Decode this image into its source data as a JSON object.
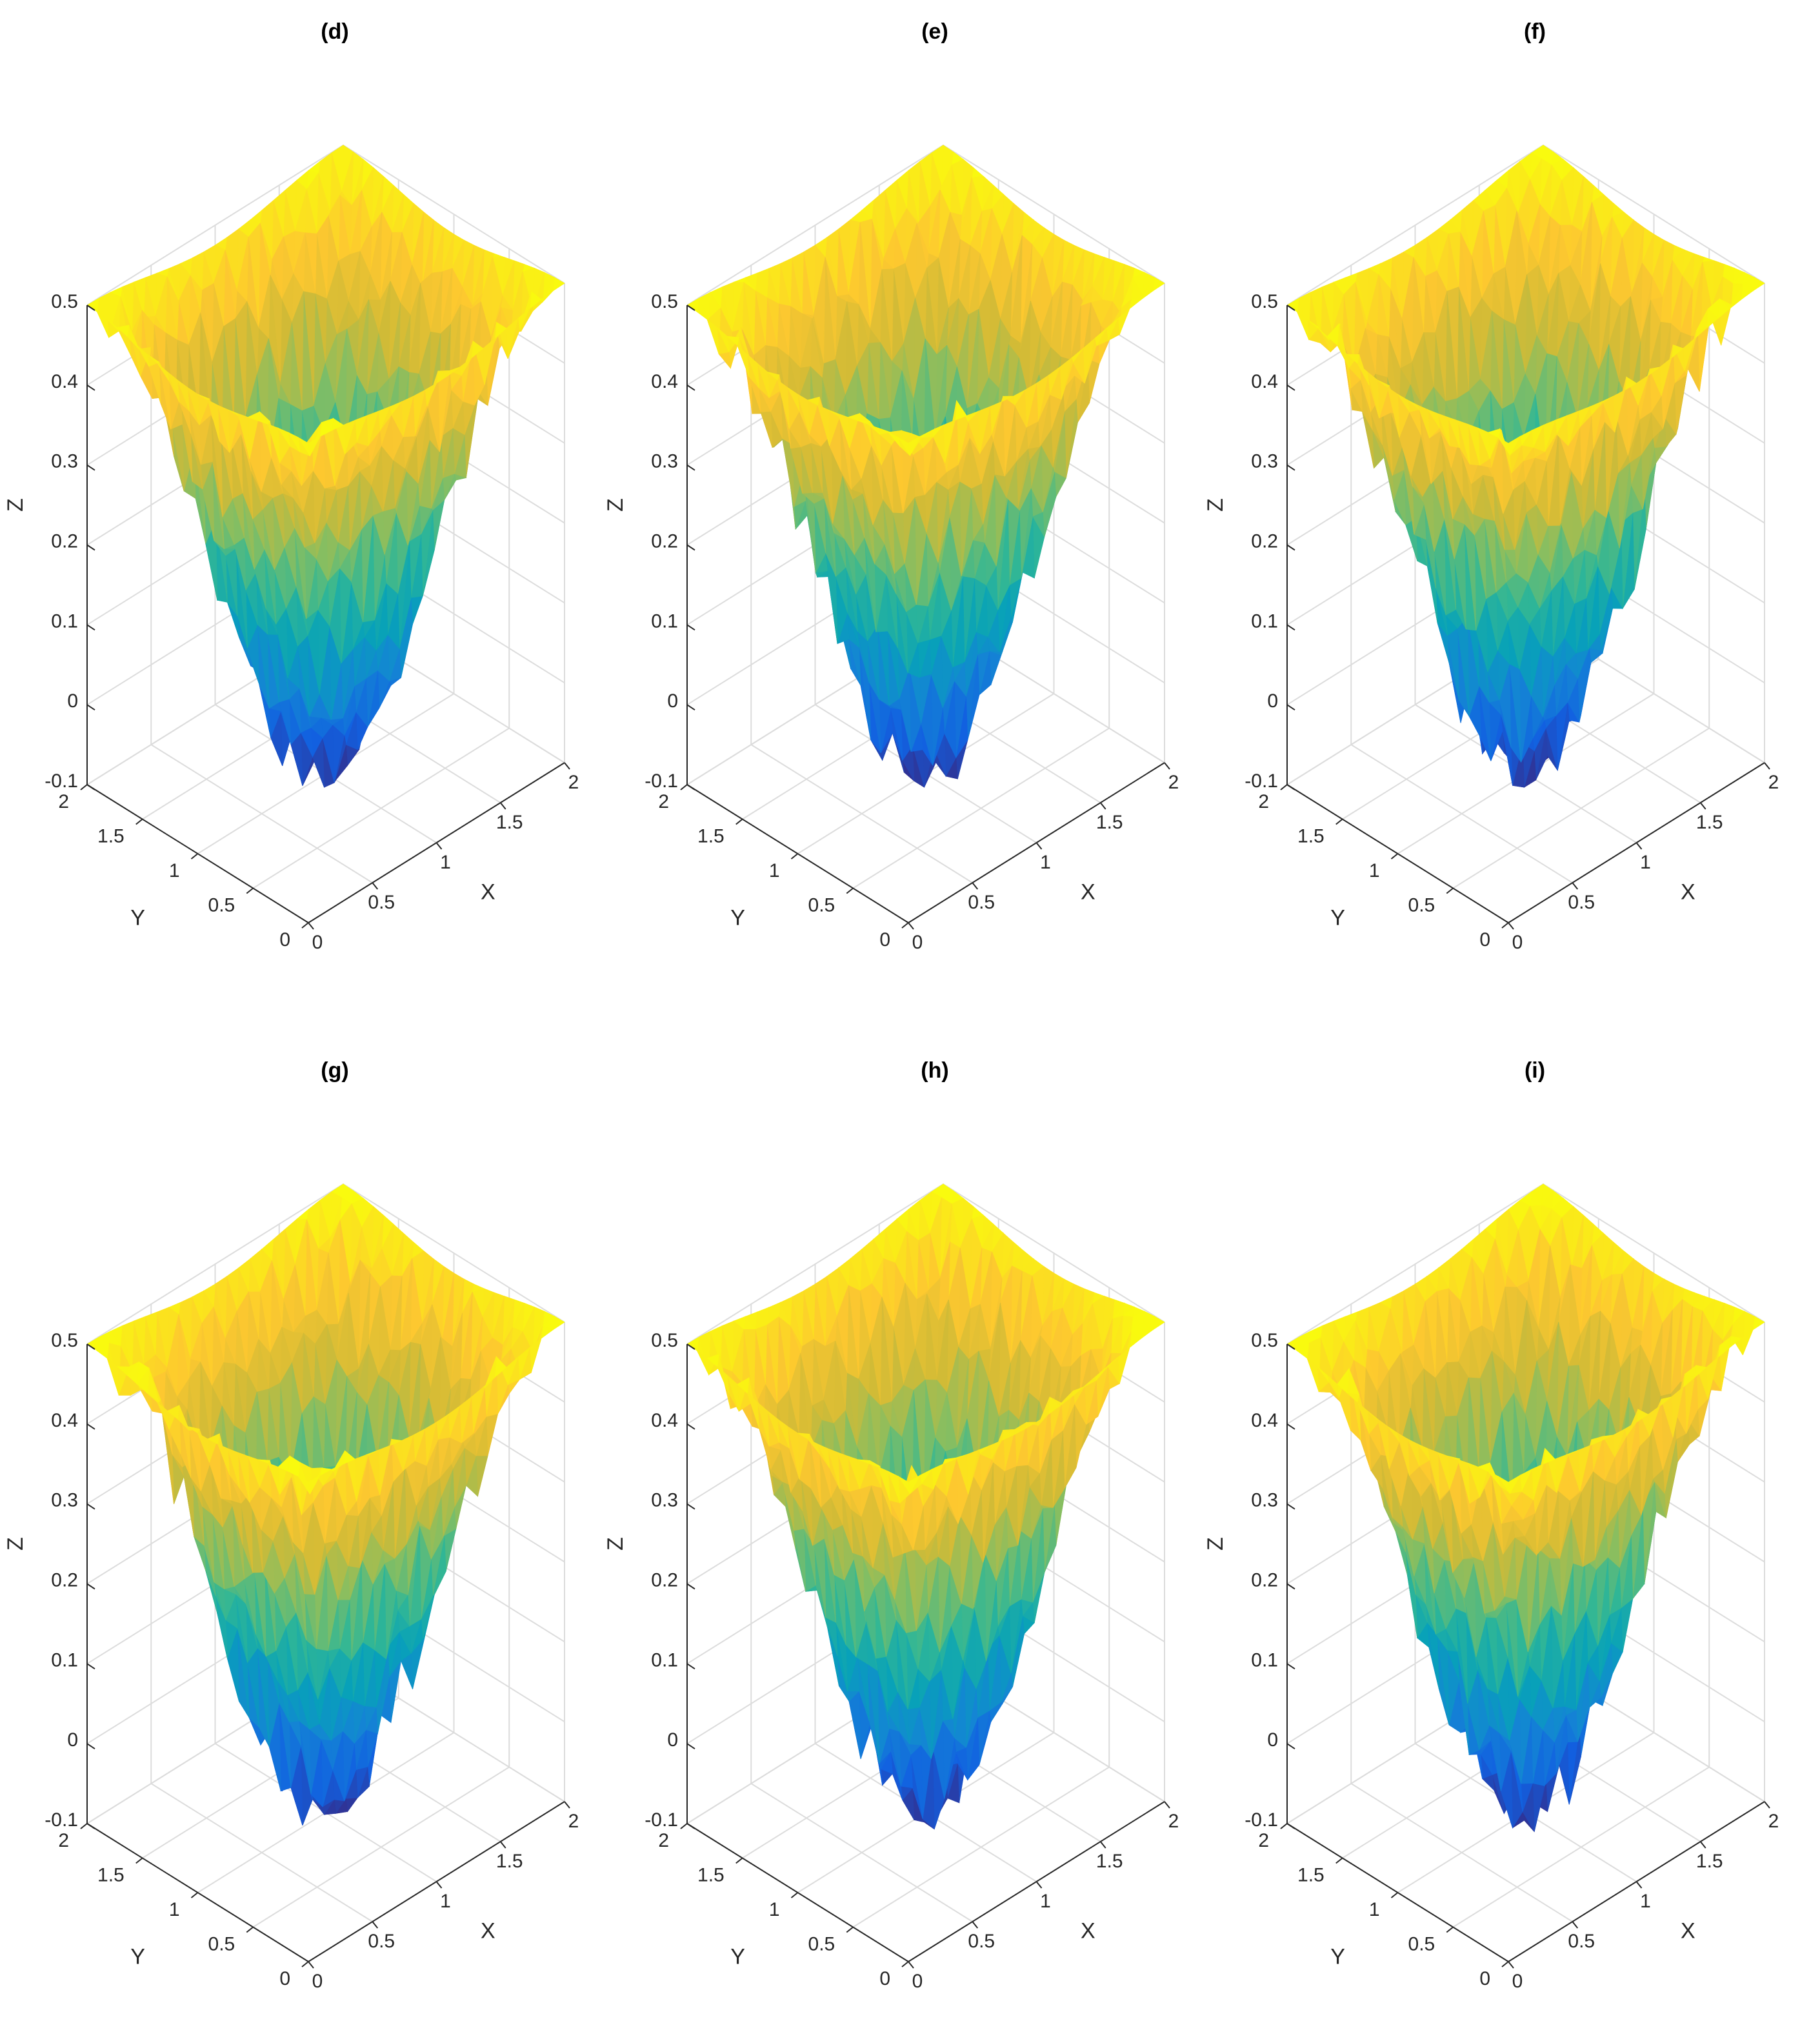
{
  "chart_data": [
    {
      "type": "surface",
      "title": "(d)",
      "xlabel": "X",
      "ylabel": "Y",
      "zlabel": "Z",
      "xlim": [
        0,
        2
      ],
      "ylim": [
        0,
        2
      ],
      "zlim": [
        -0.1,
        0.5
      ],
      "xticks": [
        "0",
        "0.5",
        "1",
        "1.5",
        "2"
      ],
      "yticks": [
        "0",
        "0.5",
        "1",
        "1.5",
        "2"
      ],
      "zticks": [
        "-0.1",
        "0",
        "0.1",
        "0.2",
        "0.3",
        "0.4",
        "0.5"
      ],
      "grid": true,
      "colormap": "parula",
      "z_min": -0.1,
      "z_max": 0.5,
      "z_corner": 0.5,
      "noise": 0.08,
      "seed": 11
    },
    {
      "type": "surface",
      "title": "(e)",
      "xlabel": "X",
      "ylabel": "Y",
      "zlabel": "Z",
      "xlim": [
        0,
        2
      ],
      "ylim": [
        0,
        2
      ],
      "zlim": [
        -0.1,
        0.5
      ],
      "xticks": [
        "0",
        "0.5",
        "1",
        "1.5",
        "2"
      ],
      "yticks": [
        "0",
        "0.5",
        "1",
        "1.5",
        "2"
      ],
      "zticks": [
        "-0.1",
        "0",
        "0.1",
        "0.2",
        "0.3",
        "0.4",
        "0.5"
      ],
      "grid": true,
      "colormap": "parula",
      "z_min": -0.1,
      "z_max": 0.5,
      "z_corner": 0.5,
      "noise": 0.08,
      "seed": 23
    },
    {
      "type": "surface",
      "title": "(f)",
      "xlabel": "X",
      "ylabel": "Y",
      "zlabel": "Z",
      "xlim": [
        0,
        2
      ],
      "ylim": [
        0,
        2
      ],
      "zlim": [
        -0.1,
        0.5
      ],
      "xticks": [
        "0",
        "0.5",
        "1",
        "1.5",
        "2"
      ],
      "yticks": [
        "0",
        "0.5",
        "1",
        "1.5",
        "2"
      ],
      "zticks": [
        "-0.1",
        "0",
        "0.1",
        "0.2",
        "0.3",
        "0.4",
        "0.5"
      ],
      "grid": true,
      "colormap": "parula",
      "z_min": -0.1,
      "z_max": 0.5,
      "z_corner": 0.5,
      "noise": 0.08,
      "seed": 37
    },
    {
      "type": "surface",
      "title": "(g)",
      "xlabel": "X",
      "ylabel": "Y",
      "zlabel": "Z",
      "xlim": [
        0,
        2
      ],
      "ylim": [
        0,
        2
      ],
      "zlim": [
        -0.1,
        0.5
      ],
      "xticks": [
        "0",
        "0.5",
        "1",
        "1.5",
        "2"
      ],
      "yticks": [
        "0",
        "0.5",
        "1",
        "1.5",
        "2"
      ],
      "zticks": [
        "-0.1",
        "0",
        "0.1",
        "0.2",
        "0.3",
        "0.4",
        "0.5"
      ],
      "grid": true,
      "colormap": "parula",
      "z_min": -0.1,
      "z_max": 0.5,
      "z_corner": 0.5,
      "noise": 0.08,
      "seed": 41
    },
    {
      "type": "surface",
      "title": "(h)",
      "xlabel": "X",
      "ylabel": "Y",
      "zlabel": "Z",
      "xlim": [
        0,
        2
      ],
      "ylim": [
        0,
        2
      ],
      "zlim": [
        -0.1,
        0.5
      ],
      "xticks": [
        "0",
        "0.5",
        "1",
        "1.5",
        "2"
      ],
      "yticks": [
        "0",
        "0.5",
        "1",
        "1.5",
        "2"
      ],
      "zticks": [
        "-0.1",
        "0",
        "0.1",
        "0.2",
        "0.3",
        "0.4",
        "0.5"
      ],
      "grid": true,
      "colormap": "parula",
      "z_min": -0.1,
      "z_max": 0.5,
      "z_corner": 0.5,
      "noise": 0.08,
      "seed": 53
    },
    {
      "type": "surface",
      "title": "(i)",
      "xlabel": "X",
      "ylabel": "Y",
      "zlabel": "Z",
      "xlim": [
        0,
        2
      ],
      "ylim": [
        0,
        2
      ],
      "zlim": [
        -0.1,
        0.5
      ],
      "xticks": [
        "0",
        "0.5",
        "1",
        "1.5",
        "2"
      ],
      "yticks": [
        "0",
        "0.5",
        "1",
        "1.5",
        "2"
      ],
      "zticks": [
        "-0.1",
        "0",
        "0.1",
        "0.2",
        "0.3",
        "0.4",
        "0.5"
      ],
      "grid": true,
      "colormap": "parula",
      "z_min": -0.1,
      "z_max": 0.5,
      "z_corner": 0.5,
      "noise": 0.08,
      "seed": 67
    }
  ]
}
